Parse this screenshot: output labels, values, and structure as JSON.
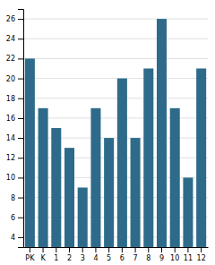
{
  "chart_data": {
    "type": "bar",
    "categories": [
      "PK",
      "K",
      "1",
      "2",
      "3",
      "4",
      "5",
      "6",
      "7",
      "8",
      "9",
      "10",
      "11",
      "12"
    ],
    "values": [
      22,
      17,
      15,
      13,
      9,
      17,
      14,
      20,
      14,
      21,
      26,
      17,
      10,
      21
    ],
    "color": "#2e6b8a",
    "ylim": [
      3,
      27
    ],
    "yticks": [
      4,
      6,
      8,
      10,
      12,
      14,
      16,
      18,
      20,
      22,
      24,
      26
    ],
    "grid": true
  }
}
